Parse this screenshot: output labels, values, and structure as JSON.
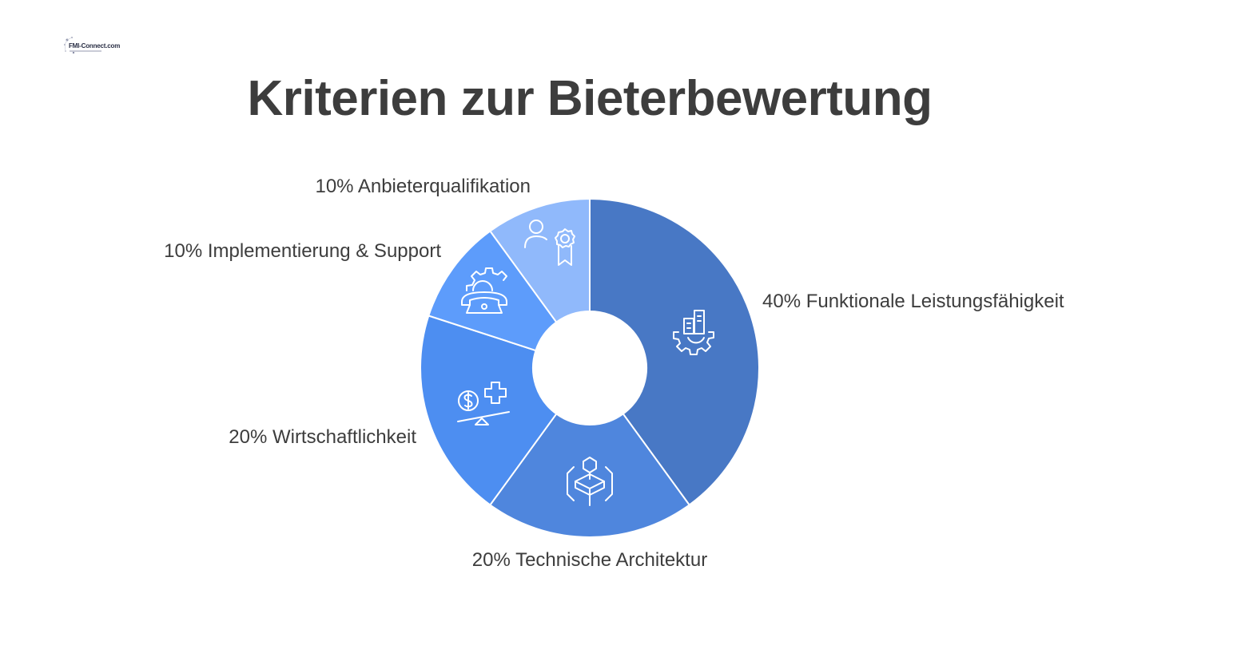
{
  "logo": {
    "text": "FMI-Connect.com"
  },
  "title": "Kriterien zur Bieterbewertung",
  "chart_data": {
    "type": "pie",
    "title": "Kriterien zur Bieterbewertung",
    "donut": true,
    "legend": "none",
    "slices": [
      {
        "label": "40% Funktionale Leistungsfähigkeit",
        "value": 40,
        "color": "#4878c5",
        "icon": "gear-with-building-icon"
      },
      {
        "label": "20% Technische Architektur",
        "value": 20,
        "color": "#4f86dd",
        "icon": "layered-architecture-icon"
      },
      {
        "label": "20% Wirtschaftlichkeit",
        "value": 20,
        "color": "#4d8ef1",
        "icon": "cost-benefit-balance-icon"
      },
      {
        "label": "10% Implementierung & Support",
        "value": 10,
        "color": "#5d9cfb",
        "icon": "support-phone-gear-icon"
      },
      {
        "label": "10% Anbieterqualifikation",
        "value": 10,
        "color": "#90b9fb",
        "icon": "person-award-icon"
      }
    ]
  }
}
